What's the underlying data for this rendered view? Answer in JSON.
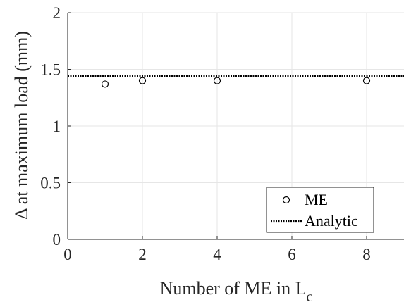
{
  "chart_data": {
    "type": "scatter",
    "title": "",
    "xlabel": "Number of ME in L",
    "xlabel_subscript": "c",
    "ylabel": "Δ at maximum load (mm)",
    "xlim": [
      0,
      9
    ],
    "ylim": [
      0,
      2
    ],
    "xticks": [
      0,
      2,
      4,
      6,
      8
    ],
    "yticks": [
      0,
      0.5,
      1,
      1.5,
      2
    ],
    "xtick_labels": [
      "0",
      "2",
      "4",
      "6",
      "8"
    ],
    "ytick_labels": [
      "0",
      "0.5",
      "1",
      "1.5",
      "2"
    ],
    "grid": true,
    "legend_position": "bottom-right",
    "series": [
      {
        "name": "ME",
        "kind": "markers",
        "marker": "open-circle",
        "x": [
          1,
          2,
          4,
          8
        ],
        "y": [
          1.37,
          1.4,
          1.4,
          1.4
        ]
      },
      {
        "name": "Analytic",
        "kind": "dotted-line",
        "x": [
          0,
          9
        ],
        "y": [
          1.44,
          1.44
        ]
      }
    ]
  }
}
